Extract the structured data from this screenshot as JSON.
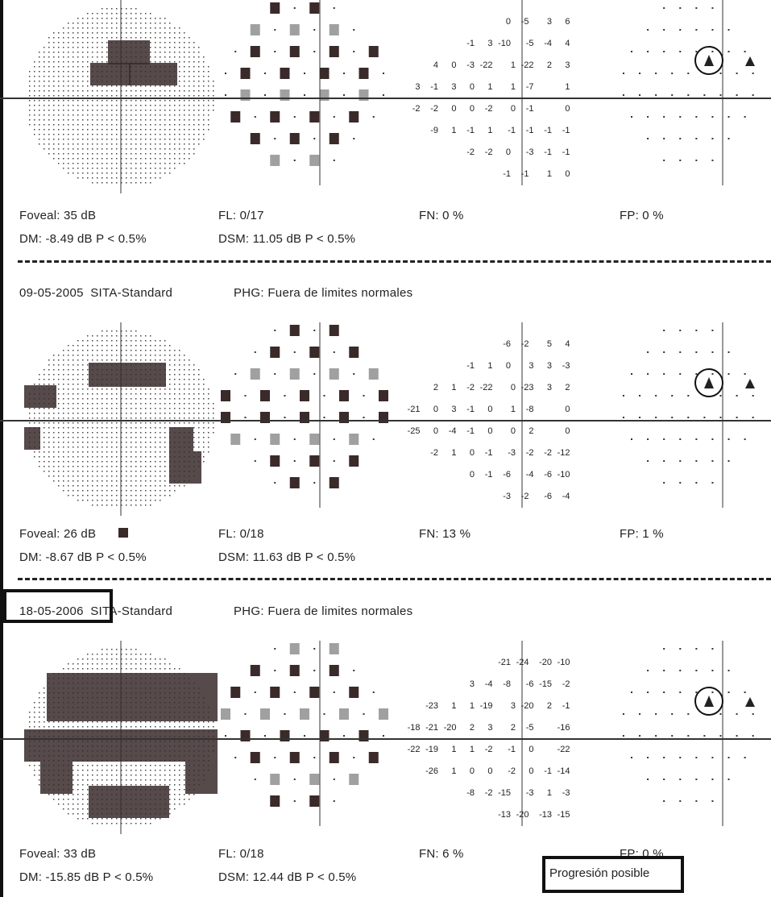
{
  "panels": [
    {
      "date": "",
      "algorithm": "",
      "ghp": "",
      "foveal": "Foveal: 35 dB",
      "fl": "FL: 0/17",
      "fn": "FN:  0 %",
      "fp": "FP:  0 %",
      "dm": "DM:  -8.49 dB  P < 0.5%",
      "dsm": "DSM:  11.05 dB  P < 0.5%",
      "deviation_rows": [
        [
          "0",
          "-5",
          "3",
          "6"
        ],
        [
          "-1",
          "3",
          "-10",
          "-5",
          "-4",
          "4"
        ],
        [
          "4",
          "0",
          "-3",
          "-22",
          "1",
          "-22",
          "2",
          "3"
        ],
        [
          "3",
          "-1",
          "3",
          "0",
          "1",
          "1",
          "-7",
          "",
          "1"
        ],
        [
          "-2",
          "-2",
          "0",
          "0",
          "-2",
          "0",
          "-1",
          "",
          "0"
        ],
        [
          "-9",
          "1",
          "-1",
          "1",
          "-1",
          "-1",
          "-1",
          "-1"
        ],
        [
          "-2",
          "-2",
          "0",
          "-3",
          "-1",
          "-1"
        ],
        [
          "-1",
          "-1",
          "1",
          "0"
        ]
      ]
    },
    {
      "date": "09-05-2005",
      "algorithm": "SITA-Standard",
      "ghp": "PHG: Fuera de limites normales",
      "foveal": "Foveal: 26 dB",
      "fl": "FL: 0/18",
      "fn": "FN:  13 %",
      "fp": "FP:  1 %",
      "dm": "DM:  -8.67 dB  P < 0.5%",
      "dsm": "DSM:  11.63 dB  P < 0.5%",
      "deviation_rows": [
        [
          "-6",
          "-2",
          "5",
          "4"
        ],
        [
          "-1",
          "1",
          "0",
          "3",
          "3",
          "-3"
        ],
        [
          "2",
          "1",
          "-2",
          "-22",
          "0",
          "-23",
          "3",
          "2"
        ],
        [
          "-21",
          "0",
          "3",
          "-1",
          "0",
          "1",
          "-8",
          "",
          "0"
        ],
        [
          "-25",
          "0",
          "-4",
          "-1",
          "0",
          "0",
          "2",
          "",
          "0"
        ],
        [
          "-2",
          "1",
          "0",
          "-1",
          "-3",
          "-2",
          "-2",
          "-12"
        ],
        [
          "0",
          "-1",
          "-6",
          "-4",
          "-6",
          "-10"
        ],
        [
          "-3",
          "-2",
          "-6",
          "-4"
        ]
      ]
    },
    {
      "date": "18-05-2006",
      "algorithm": "SITA-Standard",
      "ghp": "PHG: Fuera de limites normales",
      "foveal": "Foveal: 33 dB",
      "fl": "FL: 0/18",
      "fn": "FN:  6 %",
      "fp": "FP:  0 %",
      "dm": "DM:  -15.85 dB  P < 0.5%",
      "dsm": "DSM:  12.44 dB  P < 0.5%",
      "deviation_rows": [
        [
          "-21",
          "-24",
          "-20",
          "-10"
        ],
        [
          "3",
          "-4",
          "-8",
          "-6",
          "-15",
          "-2"
        ],
        [
          "-23",
          "1",
          "1",
          "-19",
          "3",
          "-20",
          "2",
          "-1"
        ],
        [
          "-18",
          "-21",
          "-20",
          "2",
          "3",
          "2",
          "-5",
          "",
          "-16"
        ],
        [
          "-22",
          "-19",
          "1",
          "1",
          "-2",
          "-1",
          "0",
          "",
          "-22"
        ],
        [
          "-26",
          "1",
          "0",
          "0",
          "-2",
          "0",
          "-1",
          "-14"
        ],
        [
          "-8",
          "-2",
          "-15",
          "-3",
          "1",
          "-3"
        ],
        [
          "-13",
          "-20",
          "-13",
          "-15"
        ]
      ]
    }
  ],
  "annotation": {
    "label": "Progresión posible"
  },
  "icons": {
    "grey_scale": "greyscale-field-plot",
    "probability": "probability-symbol-plot",
    "progression": "progression-symbol-plot"
  }
}
